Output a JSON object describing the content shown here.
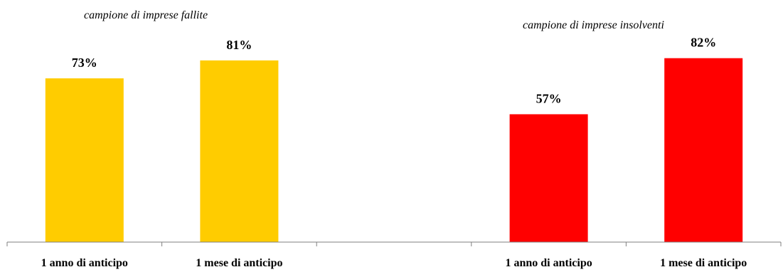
{
  "chart_data": {
    "type": "bar",
    "categories": [
      "1 anno di anticipo",
      "1 mese di anticipo",
      "",
      "1 anno di anticipo",
      "1 mese di anticipo"
    ],
    "values": [
      73,
      81,
      null,
      57,
      82
    ],
    "data_labels": [
      "73%",
      "81%",
      "",
      "57%",
      "82%"
    ],
    "groups": [
      {
        "caption": "campione di imprese fallite",
        "bar_color": "#FFCC00"
      },
      {
        "caption": "campione di imprese insolventi",
        "bar_color": "#FF0000"
      }
    ],
    "bar_colors": [
      "#FFCC00",
      "#FFCC00",
      null,
      "#FF0000",
      "#FF0000"
    ],
    "ylim": [
      0,
      100
    ],
    "grid": false,
    "legend": "none"
  }
}
